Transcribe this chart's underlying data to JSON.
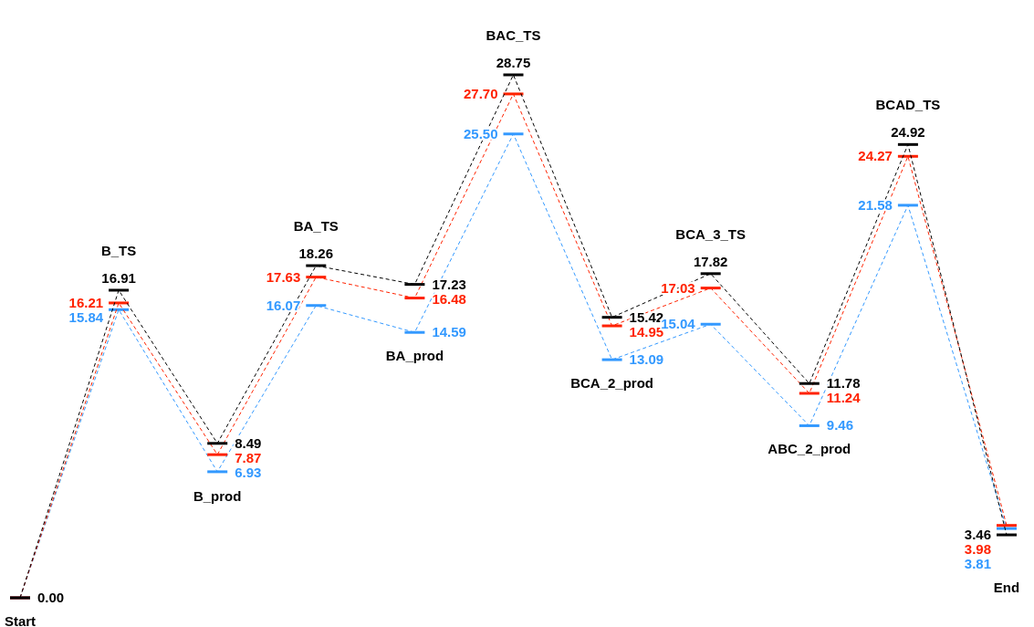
{
  "chart_data": {
    "type": "line",
    "categories": [
      "Start",
      "B_TS",
      "B_prod",
      "BA_TS",
      "BA_prod",
      "BAC_TS",
      "BCA_2_prod",
      "BCA_3_TS",
      "ABC_2_prod",
      "BCAD_TS",
      "End"
    ],
    "series": [
      {
        "color": "#000000",
        "values": [
          0,
          16.91,
          8.49,
          18.26,
          17.23,
          28.75,
          15.42,
          17.82,
          11.78,
          24.92,
          3.46
        ],
        "value_labels": [
          "0.00",
          "16.91",
          "8.49",
          "18.26",
          "17.23",
          "28.75",
          "15.42",
          "17.82",
          "11.78",
          "24.92",
          "3.46"
        ]
      },
      {
        "color": "#ff2200",
        "values": [
          0,
          16.21,
          7.87,
          17.63,
          16.48,
          27.7,
          14.95,
          17.03,
          11.24,
          24.27,
          3.98
        ],
        "value_labels": [
          null,
          "16.21",
          "7.87",
          "17.63",
          "16.48",
          "27.70",
          "14.95",
          "17.03",
          "11.24",
          "24.27",
          "3.98"
        ]
      },
      {
        "color": "#3399ff",
        "values": [
          0,
          15.84,
          6.93,
          16.07,
          14.59,
          25.5,
          13.09,
          15.04,
          9.46,
          21.58,
          3.81
        ],
        "value_labels": [
          null,
          "15.84",
          "6.93",
          "16.07",
          "14.59",
          "25.50",
          "13.09",
          "15.04",
          "9.46",
          "21.58",
          "3.81"
        ]
      }
    ],
    "line_style": "dashed",
    "tick_labels": false,
    "grid": false
  }
}
